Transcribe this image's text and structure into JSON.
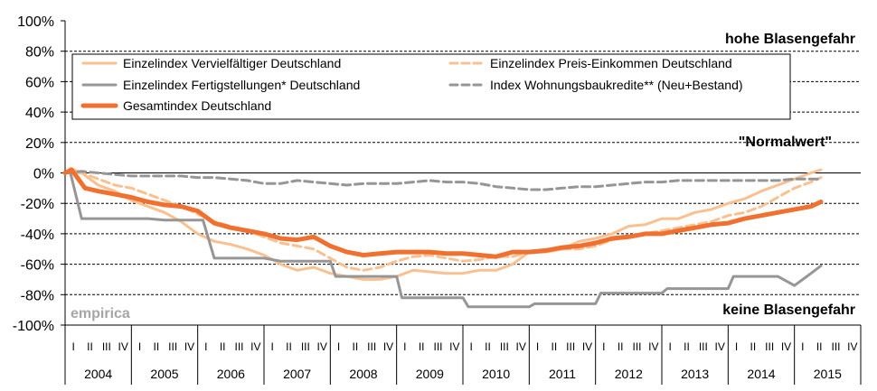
{
  "chart_data": {
    "type": "line",
    "x_start": 2004,
    "x_end": 2016,
    "ylim": [
      -100,
      100
    ],
    "yticks": [
      -100,
      -80,
      -60,
      -40,
      -20,
      0,
      20,
      40,
      60,
      80,
      100
    ],
    "ytick_labels": [
      "-100%",
      "-80%",
      "-60%",
      "-40%",
      "-20%",
      "0%",
      "20%",
      "40%",
      "60%",
      "80%",
      "100%"
    ],
    "year_labels": [
      "2004",
      "2005",
      "2006",
      "2007",
      "2008",
      "2009",
      "2010",
      "2011",
      "2012",
      "2013",
      "2014",
      "2015"
    ],
    "quarter_labels": [
      "I",
      "II",
      "III",
      "IV"
    ],
    "annotations": {
      "high": "hohe Blasengefahr",
      "normal": "\"Normalwert\"",
      "low": "keine Blasengefahr"
    },
    "brand": "empirica",
    "grid": true,
    "legend_position": "top-left, two columns",
    "series": [
      {
        "name": "Einzelindex Vervielfältiger Deutschland",
        "color": "#fac090",
        "dash": "solid",
        "width": 3,
        "points": [
          [
            2004.0,
            0
          ],
          [
            2004.08,
            3
          ],
          [
            2004.25,
            0
          ],
          [
            2004.5,
            -8
          ],
          [
            2004.75,
            -12
          ],
          [
            2005.0,
            -18
          ],
          [
            2005.25,
            -22
          ],
          [
            2005.5,
            -26
          ],
          [
            2005.75,
            -32
          ],
          [
            2006.0,
            -40
          ],
          [
            2006.25,
            -45
          ],
          [
            2006.5,
            -47
          ],
          [
            2006.75,
            -50
          ],
          [
            2007.0,
            -54
          ],
          [
            2007.25,
            -60
          ],
          [
            2007.5,
            -64
          ],
          [
            2007.75,
            -62
          ],
          [
            2008.0,
            -66
          ],
          [
            2008.25,
            -68
          ],
          [
            2008.5,
            -70
          ],
          [
            2008.75,
            -70
          ],
          [
            2009.0,
            -68
          ],
          [
            2009.25,
            -64
          ],
          [
            2009.5,
            -65
          ],
          [
            2009.75,
            -66
          ],
          [
            2010.0,
            -66
          ],
          [
            2010.25,
            -64
          ],
          [
            2010.5,
            -64
          ],
          [
            2010.75,
            -60
          ],
          [
            2011.0,
            -52
          ],
          [
            2011.25,
            -52
          ],
          [
            2011.5,
            -50
          ],
          [
            2011.75,
            -45
          ],
          [
            2012.0,
            -43
          ],
          [
            2012.25,
            -40
          ],
          [
            2012.5,
            -35
          ],
          [
            2012.75,
            -34
          ],
          [
            2013.0,
            -30
          ],
          [
            2013.25,
            -30
          ],
          [
            2013.5,
            -26
          ],
          [
            2013.75,
            -24
          ],
          [
            2014.0,
            -20
          ],
          [
            2014.25,
            -17
          ],
          [
            2014.5,
            -12
          ],
          [
            2014.75,
            -8
          ],
          [
            2015.0,
            -4
          ],
          [
            2015.25,
            0
          ],
          [
            2015.4,
            2
          ]
        ]
      },
      {
        "name": "Einzelindex Preis-Einkommen Deutschland",
        "color": "#fac090",
        "dash": "dashed",
        "width": 3,
        "points": [
          [
            2004.0,
            0
          ],
          [
            2004.25,
            0
          ],
          [
            2004.5,
            -4
          ],
          [
            2004.75,
            -8
          ],
          [
            2005.0,
            -10
          ],
          [
            2005.25,
            -14
          ],
          [
            2005.5,
            -18
          ],
          [
            2005.75,
            -22
          ],
          [
            2006.0,
            -27
          ],
          [
            2006.25,
            -32
          ],
          [
            2006.5,
            -35
          ],
          [
            2006.75,
            -38
          ],
          [
            2007.0,
            -42
          ],
          [
            2007.25,
            -46
          ],
          [
            2007.5,
            -48
          ],
          [
            2007.75,
            -50
          ],
          [
            2008.0,
            -56
          ],
          [
            2008.25,
            -62
          ],
          [
            2008.5,
            -64
          ],
          [
            2008.75,
            -62
          ],
          [
            2009.0,
            -58
          ],
          [
            2009.25,
            -55
          ],
          [
            2009.5,
            -54
          ],
          [
            2009.75,
            -56
          ],
          [
            2010.0,
            -58
          ],
          [
            2010.25,
            -57
          ],
          [
            2010.5,
            -55
          ],
          [
            2010.75,
            -55
          ],
          [
            2011.0,
            -52
          ],
          [
            2011.25,
            -52
          ],
          [
            2011.5,
            -50
          ],
          [
            2011.75,
            -50
          ],
          [
            2012.0,
            -48
          ],
          [
            2012.25,
            -44
          ],
          [
            2012.5,
            -42
          ],
          [
            2012.75,
            -40
          ],
          [
            2013.0,
            -38
          ],
          [
            2013.25,
            -36
          ],
          [
            2013.5,
            -34
          ],
          [
            2013.75,
            -32
          ],
          [
            2014.0,
            -28
          ],
          [
            2014.25,
            -26
          ],
          [
            2014.5,
            -22
          ],
          [
            2014.75,
            -16
          ],
          [
            2015.0,
            -10
          ],
          [
            2015.25,
            -6
          ],
          [
            2015.4,
            -3
          ]
        ]
      },
      {
        "name": "Einzelindex Fertigstellungen* Deutschland",
        "color": "#969696",
        "dash": "solid",
        "width": 3,
        "points": [
          [
            2004.0,
            0
          ],
          [
            2004.08,
            0
          ],
          [
            2004.25,
            -30
          ],
          [
            2004.5,
            -30
          ],
          [
            2004.75,
            -30
          ],
          [
            2005.0,
            -30
          ],
          [
            2005.25,
            -30
          ],
          [
            2005.5,
            -31
          ],
          [
            2005.75,
            -31
          ],
          [
            2006.0,
            -31
          ],
          [
            2006.08,
            -31
          ],
          [
            2006.25,
            -56
          ],
          [
            2006.5,
            -56
          ],
          [
            2006.75,
            -56
          ],
          [
            2007.0,
            -56
          ],
          [
            2007.25,
            -58
          ],
          [
            2007.5,
            -58
          ],
          [
            2007.75,
            -58
          ],
          [
            2008.0,
            -58
          ],
          [
            2008.08,
            -68
          ],
          [
            2008.25,
            -68
          ],
          [
            2008.5,
            -68
          ],
          [
            2008.75,
            -68
          ],
          [
            2009.0,
            -68
          ],
          [
            2009.08,
            -82
          ],
          [
            2009.25,
            -82
          ],
          [
            2009.5,
            -82
          ],
          [
            2009.75,
            -82
          ],
          [
            2010.0,
            -82
          ],
          [
            2010.08,
            -88
          ],
          [
            2010.25,
            -88
          ],
          [
            2010.5,
            -88
          ],
          [
            2010.75,
            -88
          ],
          [
            2011.0,
            -88
          ],
          [
            2011.08,
            -86
          ],
          [
            2011.25,
            -86
          ],
          [
            2011.5,
            -86
          ],
          [
            2011.75,
            -86
          ],
          [
            2012.0,
            -86
          ],
          [
            2012.08,
            -79
          ],
          [
            2012.25,
            -79
          ],
          [
            2012.5,
            -79
          ],
          [
            2012.75,
            -79
          ],
          [
            2013.0,
            -79
          ],
          [
            2013.08,
            -76
          ],
          [
            2013.25,
            -76
          ],
          [
            2013.5,
            -76
          ],
          [
            2013.75,
            -76
          ],
          [
            2014.0,
            -76
          ],
          [
            2014.08,
            -68
          ],
          [
            2014.25,
            -68
          ],
          [
            2014.5,
            -68
          ],
          [
            2014.75,
            -68
          ],
          [
            2015.0,
            -74
          ],
          [
            2015.25,
            -66
          ],
          [
            2015.4,
            -61
          ]
        ]
      },
      {
        "name": "Index Wohnungsbaukredite** (Neu+Bestand)",
        "color": "#969696",
        "dash": "dashed",
        "width": 3,
        "points": [
          [
            2004.0,
            0
          ],
          [
            2004.25,
            1
          ],
          [
            2004.5,
            0
          ],
          [
            2004.75,
            -1
          ],
          [
            2005.0,
            -2
          ],
          [
            2005.25,
            -2
          ],
          [
            2005.5,
            -2
          ],
          [
            2005.75,
            -2
          ],
          [
            2006.0,
            -3
          ],
          [
            2006.25,
            -3
          ],
          [
            2006.5,
            -4
          ],
          [
            2006.75,
            -5
          ],
          [
            2007.0,
            -7
          ],
          [
            2007.25,
            -7
          ],
          [
            2007.5,
            -5
          ],
          [
            2007.75,
            -6
          ],
          [
            2008.0,
            -7
          ],
          [
            2008.25,
            -8
          ],
          [
            2008.5,
            -7
          ],
          [
            2008.75,
            -7
          ],
          [
            2009.0,
            -7
          ],
          [
            2009.25,
            -6
          ],
          [
            2009.5,
            -5
          ],
          [
            2009.75,
            -6
          ],
          [
            2010.0,
            -6
          ],
          [
            2010.25,
            -7
          ],
          [
            2010.5,
            -9
          ],
          [
            2010.75,
            -10
          ],
          [
            2011.0,
            -11
          ],
          [
            2011.25,
            -11
          ],
          [
            2011.5,
            -10
          ],
          [
            2011.75,
            -9
          ],
          [
            2012.0,
            -9
          ],
          [
            2012.25,
            -8
          ],
          [
            2012.5,
            -7
          ],
          [
            2012.75,
            -6
          ],
          [
            2013.0,
            -6
          ],
          [
            2013.25,
            -5
          ],
          [
            2013.5,
            -5
          ],
          [
            2013.75,
            -5
          ],
          [
            2014.0,
            -5
          ],
          [
            2014.25,
            -5
          ],
          [
            2014.5,
            -5
          ],
          [
            2014.75,
            -5
          ],
          [
            2015.0,
            -4
          ],
          [
            2015.25,
            -4
          ],
          [
            2015.4,
            -4
          ]
        ]
      },
      {
        "name": "Gesamtindex Deutschland",
        "color": "#f07030",
        "dash": "solid",
        "width": 5,
        "points": [
          [
            2004.0,
            0
          ],
          [
            2004.1,
            2
          ],
          [
            2004.3,
            -10
          ],
          [
            2004.5,
            -12
          ],
          [
            2004.75,
            -14
          ],
          [
            2005.0,
            -16
          ],
          [
            2005.25,
            -19
          ],
          [
            2005.5,
            -21
          ],
          [
            2005.75,
            -22
          ],
          [
            2006.0,
            -25
          ],
          [
            2006.25,
            -33
          ],
          [
            2006.5,
            -36
          ],
          [
            2006.75,
            -38
          ],
          [
            2007.0,
            -40
          ],
          [
            2007.25,
            -43
          ],
          [
            2007.5,
            -44
          ],
          [
            2007.75,
            -42
          ],
          [
            2008.0,
            -48
          ],
          [
            2008.25,
            -52
          ],
          [
            2008.5,
            -54
          ],
          [
            2008.75,
            -53
          ],
          [
            2009.0,
            -52
          ],
          [
            2009.25,
            -52
          ],
          [
            2009.5,
            -52
          ],
          [
            2009.75,
            -53
          ],
          [
            2010.0,
            -53
          ],
          [
            2010.25,
            -54
          ],
          [
            2010.5,
            -55
          ],
          [
            2010.75,
            -52
          ],
          [
            2011.0,
            -52
          ],
          [
            2011.25,
            -51
          ],
          [
            2011.5,
            -49
          ],
          [
            2011.75,
            -48
          ],
          [
            2012.0,
            -46
          ],
          [
            2012.25,
            -43
          ],
          [
            2012.5,
            -42
          ],
          [
            2012.75,
            -40
          ],
          [
            2013.0,
            -40
          ],
          [
            2013.25,
            -38
          ],
          [
            2013.5,
            -36
          ],
          [
            2013.75,
            -34
          ],
          [
            2014.0,
            -33
          ],
          [
            2014.25,
            -30
          ],
          [
            2014.5,
            -28
          ],
          [
            2014.75,
            -26
          ],
          [
            2015.0,
            -24
          ],
          [
            2015.25,
            -22
          ],
          [
            2015.4,
            -19
          ]
        ]
      }
    ]
  }
}
